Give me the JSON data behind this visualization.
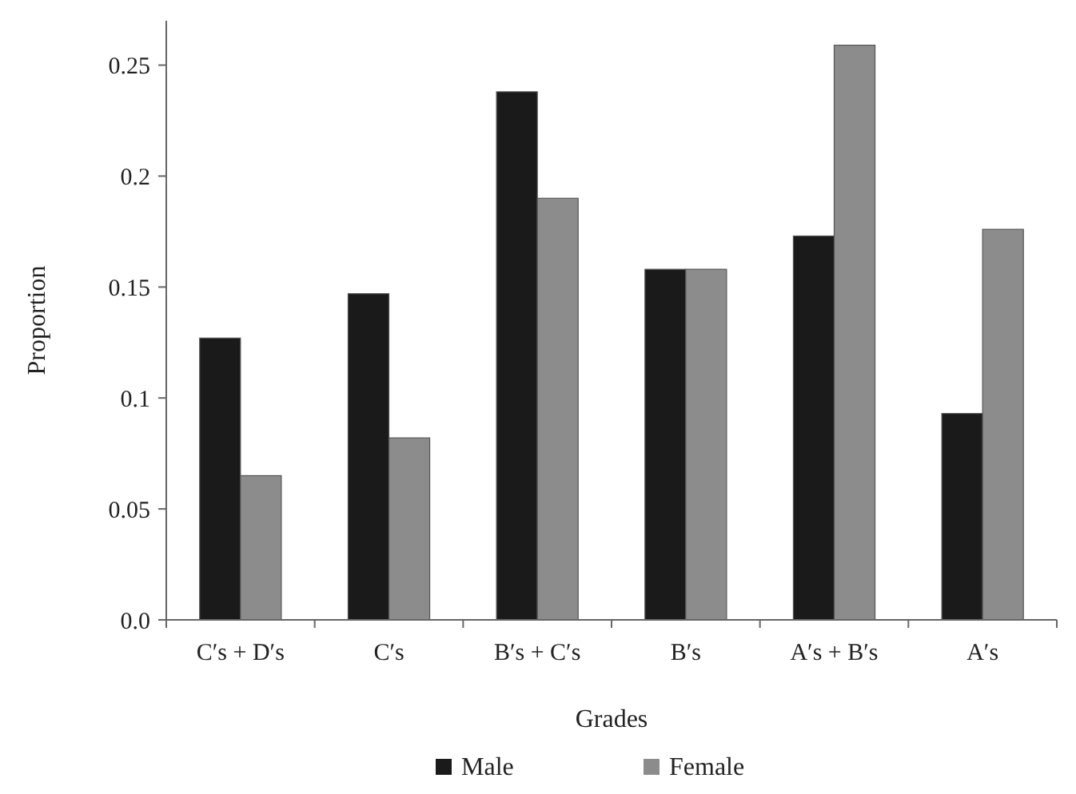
{
  "chart_data": {
    "type": "bar",
    "xlabel": "Grades",
    "ylabel": "Proportion",
    "categories": [
      "C′s + D′s",
      "C′s",
      "B′s + C′s",
      "B′s",
      "A′s + B′s",
      "A′s"
    ],
    "series": [
      {
        "name": "Male",
        "color": "#1a1a1a",
        "values": [
          0.127,
          0.147,
          0.238,
          0.158,
          0.173,
          0.093
        ]
      },
      {
        "name": "Female",
        "color": "#8c8c8c",
        "values": [
          0.065,
          0.082,
          0.19,
          0.158,
          0.259,
          0.176
        ]
      }
    ],
    "ylim": [
      0,
      0.27
    ],
    "yticks": [
      {
        "value": 0,
        "label": "0.0"
      },
      0.05,
      0.1,
      0.15,
      0.2,
      0.25
    ],
    "grid": false,
    "legend": "bottom"
  }
}
